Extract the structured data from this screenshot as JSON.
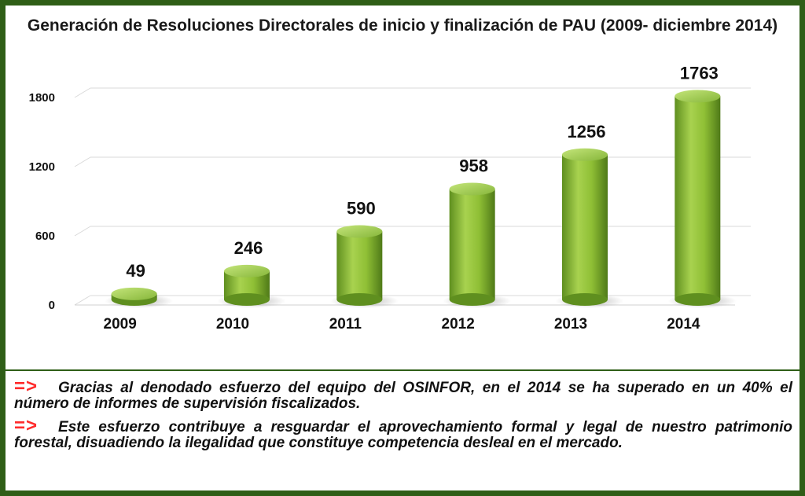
{
  "chart_data": {
    "type": "bar",
    "title": "Generación de Resoluciones Directorales de inicio y finalización de PAU (2009- diciembre 2014)",
    "categories": [
      "2009",
      "2010",
      "2011",
      "2012",
      "2013",
      "2014"
    ],
    "values": [
      49,
      246,
      590,
      958,
      1256,
      1763
    ],
    "data_labels": [
      "49",
      "246",
      "590",
      "958",
      "1256",
      "1763"
    ],
    "yticks": [
      "0",
      "600",
      "1200",
      "1800"
    ],
    "ylim": [
      0,
      1800
    ],
    "grid": true,
    "bar_color": "#7fae2e",
    "highlight_label_color": "#ff1a1a"
  },
  "notes": [
    {
      "arrow": "=>",
      "text": "Gracias al denodado esfuerzo del equipo del OSINFOR, en el 2014 se ha superado en un 40% el número de informes de supervisión fiscalizados."
    },
    {
      "arrow": "=>",
      "text": "Este esfuerzo contribuye a resguardar el aprovechamiento formal y legal de nuestro patrimonio forestal, disuadiendo la ilegalidad que constituye competencia desleal en el mercado."
    }
  ]
}
